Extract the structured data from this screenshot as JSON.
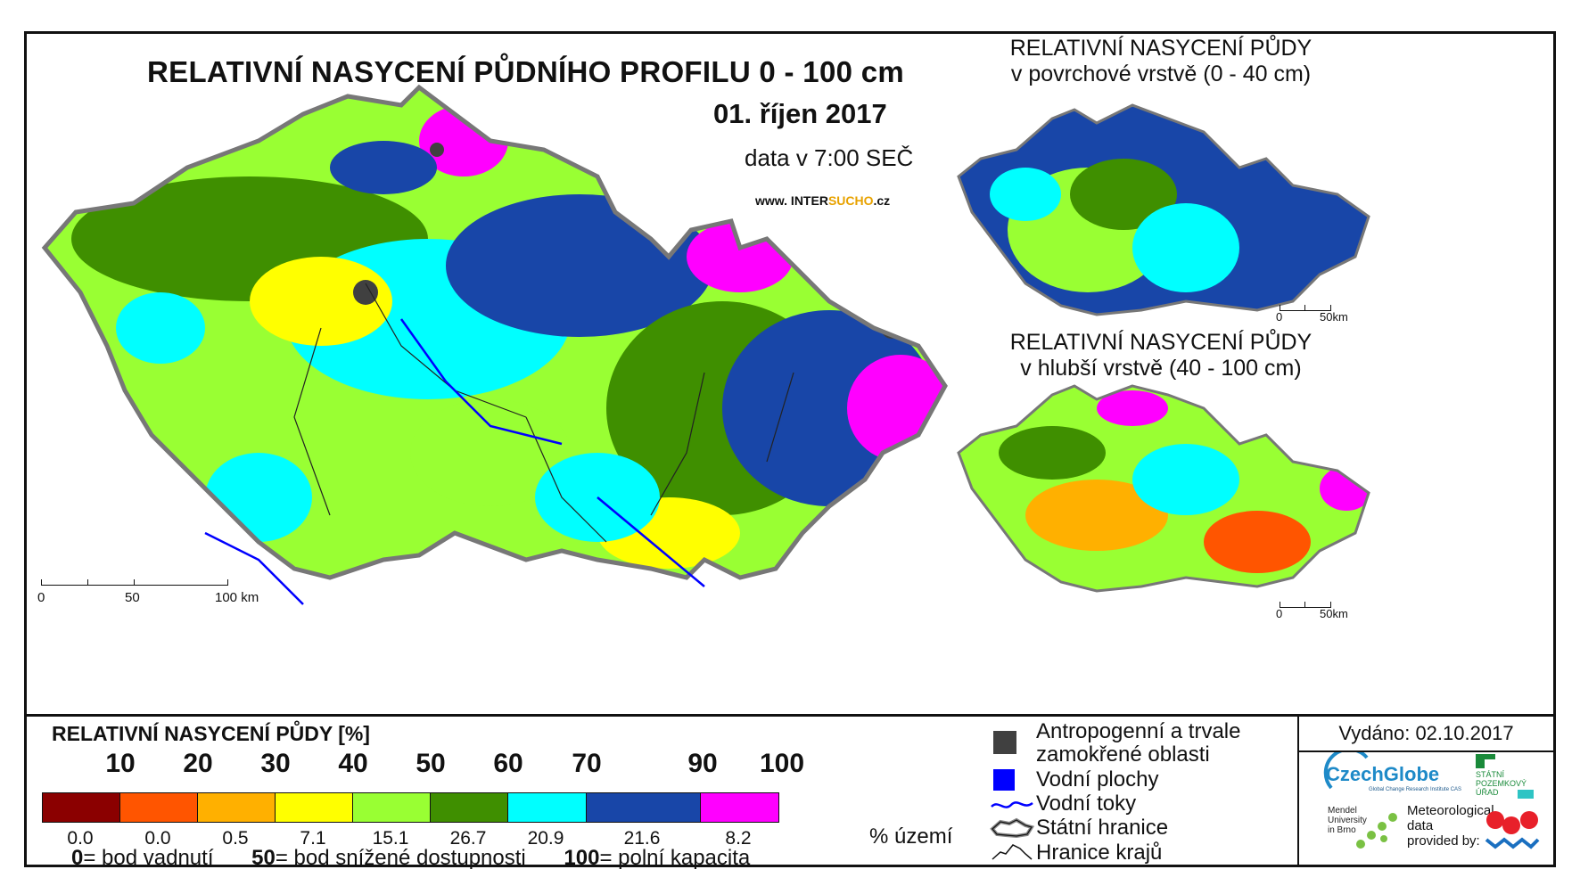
{
  "map": {
    "title": "RELATIVNÍ NASYCENÍ PŮDNÍHO PROFILU 0 - 100 cm",
    "date": "01. říjen 2017",
    "data_time": "data v 7:00 SEČ",
    "website_prefix": "www. INTER",
    "website_accent": "SUCHO",
    "website_suffix": ".cz",
    "scale_labels": [
      "0",
      "50",
      "100 km"
    ]
  },
  "inset_surface": {
    "title_line1": "RELATIVNÍ NASYCENÍ PŮDY",
    "title_line2": "v povrchové vrstvě (0 - 40 cm)",
    "scale_labels": [
      "0",
      "50km"
    ]
  },
  "inset_deep": {
    "title_line1": "RELATIVNÍ NASYCENÍ PŮDY",
    "title_line2": "v hlubší vrstvě (40 - 100 cm)",
    "scale_labels": [
      "0",
      "50km"
    ]
  },
  "legend": {
    "title": "RELATIVNÍ NASYCENÍ PŮDY [%]",
    "ticks": [
      "10",
      "20",
      "30",
      "40",
      "50",
      "60",
      "70",
      "90",
      "100"
    ],
    "classes": [
      {
        "color": "#8b0000",
        "share": "0.0"
      },
      {
        "color": "#ff5500",
        "share": "0.0"
      },
      {
        "color": "#ffb000",
        "share": "0.5"
      },
      {
        "color": "#ffff00",
        "share": "7.1"
      },
      {
        "color": "#99ff33",
        "share": "15.1"
      },
      {
        "color": "#3f8f00",
        "share": "26.7"
      },
      {
        "color": "#00ffff",
        "share": "20.9"
      },
      {
        "color": "#1846a8",
        "share": "21.6"
      },
      {
        "color": "#ff00ff",
        "share": "8.2"
      }
    ],
    "share_unit": "% území",
    "def_0_value": "0",
    "def_0_text": "= bod vadnutí",
    "def_50_value": "50",
    "def_50_text": "= bod snížené dostupnosti",
    "def_100_value": "100",
    "def_100_text": "= polní kapacita"
  },
  "symbols": {
    "anthropogenic_line1": "Antropogenní a trvale",
    "anthropogenic_line2": "zamokřené oblasti",
    "water_areas": "Vodní plochy",
    "water_streams": "Vodní toky",
    "state_border": "Státní hranice",
    "region_border": "Hranice krajů"
  },
  "issued": "Vydáno: 02.10.2017",
  "logos": {
    "czechglobe": "CzechGlobe",
    "czechglobe_sub": "Global Change Research Institute CAS",
    "spu_line1": "STÁTNÍ",
    "spu_line2": "POZEMKOVÝ",
    "spu_line3": "ÚŘAD",
    "mendel_line1": "Mendel",
    "mendel_line2": "University",
    "mendel_line3": "in Brno",
    "meteo_line1": "Meteorological",
    "meteo_line2": "data",
    "meteo_line3": "provided by:"
  },
  "colors": {
    "anthropogenic": "#404040",
    "water": "#0000ff"
  }
}
